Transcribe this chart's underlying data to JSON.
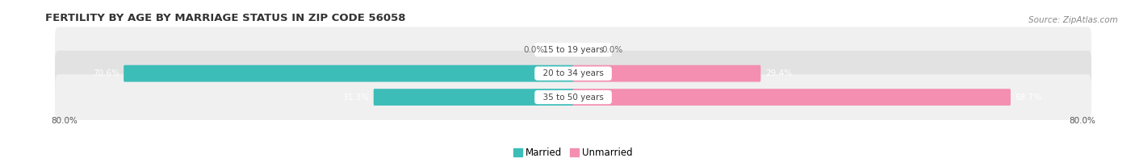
{
  "title": "FERTILITY BY AGE BY MARRIAGE STATUS IN ZIP CODE 56058",
  "source": "Source: ZipAtlas.com",
  "rows": [
    {
      "label": "15 to 19 years",
      "married": 0.0,
      "unmarried": 0.0
    },
    {
      "label": "20 to 34 years",
      "married": 70.6,
      "unmarried": 29.4
    },
    {
      "label": "35 to 50 years",
      "married": 31.3,
      "unmarried": 68.7
    }
  ],
  "axis_left_label": "80.0%",
  "axis_right_label": "80.0%",
  "married_color": "#3dbdb8",
  "unmarried_color": "#f48fb1",
  "row_bg_color_light": "#f0f0f0",
  "row_bg_color_dark": "#e2e2e2",
  "max_val": 80.0,
  "title_fontsize": 9.5,
  "source_fontsize": 7.5,
  "label_fontsize": 7.5,
  "value_fontsize": 7.5,
  "tick_fontsize": 7.5,
  "legend_fontsize": 8.5
}
